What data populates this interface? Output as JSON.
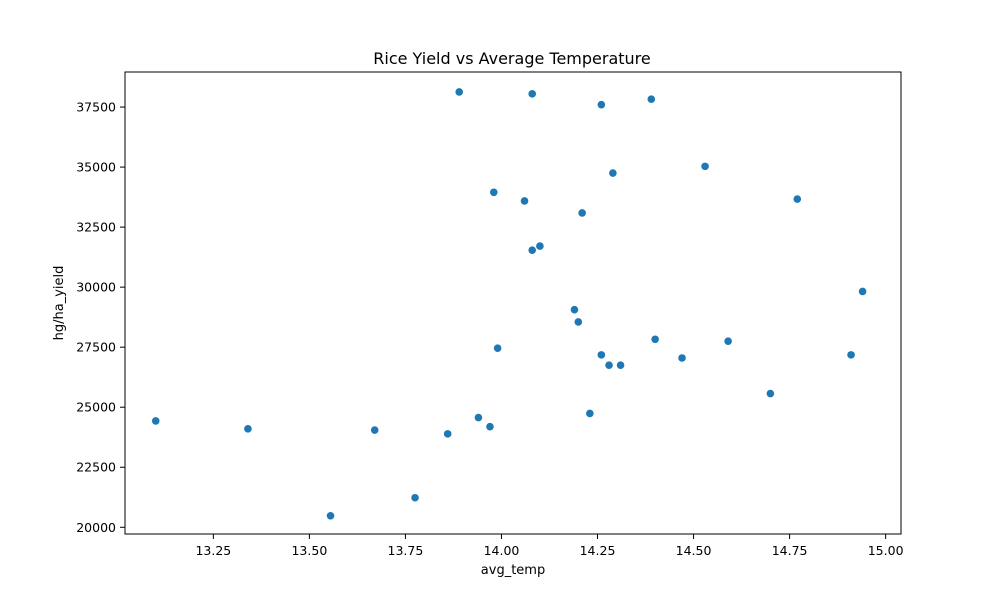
{
  "chart_data": {
    "type": "scatter",
    "title": "Rice Yield vs Average Temperature",
    "xlabel": "avg_temp",
    "ylabel": "hg/ha_yield",
    "xlim": [
      13.02,
      15.04
    ],
    "ylim": [
      19720,
      38960
    ],
    "xticks": [
      13.25,
      13.5,
      13.75,
      14.0,
      14.25,
      14.5,
      14.75,
      15.0
    ],
    "xtick_labels": [
      "13.25",
      "13.50",
      "13.75",
      "14.00",
      "14.25",
      "14.50",
      "14.75",
      "15.00"
    ],
    "yticks": [
      20000,
      22500,
      25000,
      27500,
      30000,
      32500,
      35000,
      37500
    ],
    "ytick_labels": [
      "20000",
      "22500",
      "25000",
      "27500",
      "30000",
      "32500",
      "35000",
      "37500"
    ],
    "grid": false,
    "marker_color": "#1f77b4",
    "points": [
      {
        "x": 13.1,
        "y": 24430
      },
      {
        "x": 13.34,
        "y": 24100
      },
      {
        "x": 13.555,
        "y": 20480
      },
      {
        "x": 13.67,
        "y": 24050
      },
      {
        "x": 13.775,
        "y": 21230
      },
      {
        "x": 13.86,
        "y": 23890
      },
      {
        "x": 13.89,
        "y": 38130
      },
      {
        "x": 13.94,
        "y": 24570
      },
      {
        "x": 13.97,
        "y": 24190
      },
      {
        "x": 13.98,
        "y": 33950
      },
      {
        "x": 13.99,
        "y": 27460
      },
      {
        "x": 14.06,
        "y": 33590
      },
      {
        "x": 14.08,
        "y": 38050
      },
      {
        "x": 14.08,
        "y": 31540
      },
      {
        "x": 14.1,
        "y": 31710
      },
      {
        "x": 14.19,
        "y": 29060
      },
      {
        "x": 14.2,
        "y": 28550
      },
      {
        "x": 14.21,
        "y": 33090
      },
      {
        "x": 14.23,
        "y": 24740
      },
      {
        "x": 14.26,
        "y": 37600
      },
      {
        "x": 14.26,
        "y": 27180
      },
      {
        "x": 14.28,
        "y": 26750
      },
      {
        "x": 14.29,
        "y": 34750
      },
      {
        "x": 14.31,
        "y": 26750
      },
      {
        "x": 14.39,
        "y": 37830
      },
      {
        "x": 14.4,
        "y": 27830
      },
      {
        "x": 14.47,
        "y": 27050
      },
      {
        "x": 14.53,
        "y": 35030
      },
      {
        "x": 14.59,
        "y": 27750
      },
      {
        "x": 14.7,
        "y": 25570
      },
      {
        "x": 14.77,
        "y": 33670
      },
      {
        "x": 14.91,
        "y": 27180
      },
      {
        "x": 14.94,
        "y": 29820
      }
    ]
  }
}
